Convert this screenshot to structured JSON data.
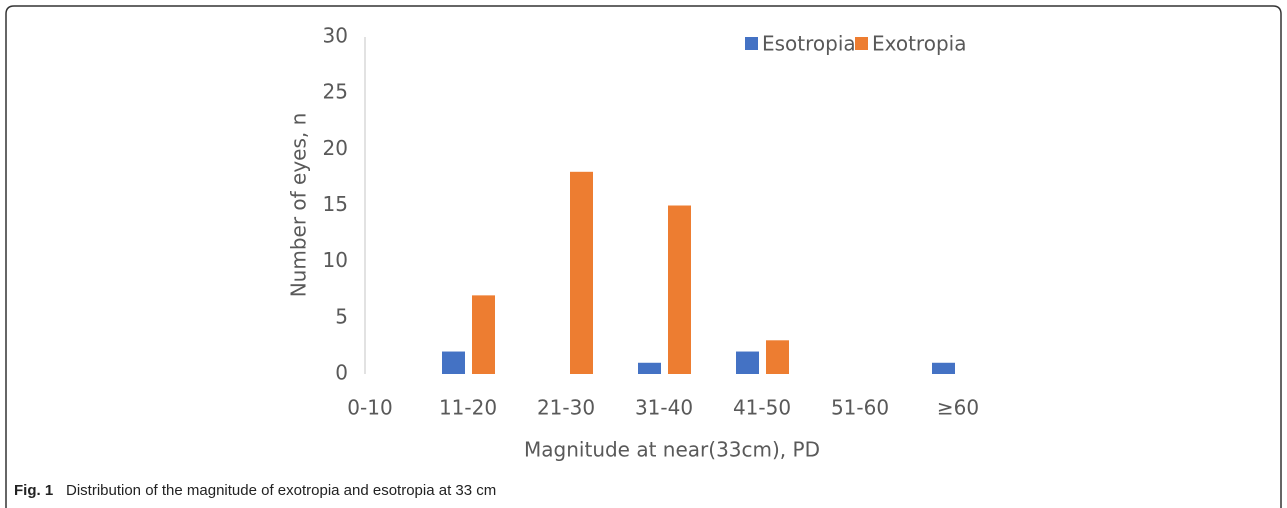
{
  "chart_data": {
    "type": "bar",
    "categories": [
      "0-10",
      "11-20",
      "21-30",
      "31-40",
      "41-50",
      "51-60",
      "≥60"
    ],
    "series": [
      {
        "name": "Esotropia",
        "color": "#4472c4",
        "values": [
          0,
          2,
          0,
          1,
          2,
          0,
          1
        ]
      },
      {
        "name": "Exotropia",
        "color": "#ed7d31",
        "values": [
          0,
          7,
          18,
          15,
          3,
          0,
          0
        ]
      }
    ],
    "ylim": [
      0,
      30
    ],
    "yticks": [
      0,
      5,
      10,
      15,
      20,
      25,
      30
    ],
    "grid": false,
    "ylabel": "Number of eyes, n",
    "xlabel": "Magnitude at near(33cm), PD",
    "legend": "top-right",
    "caption_label": "Fig. 1",
    "caption": "Distribution of the magnitude of exotropia and esotropia at 33 cm"
  }
}
